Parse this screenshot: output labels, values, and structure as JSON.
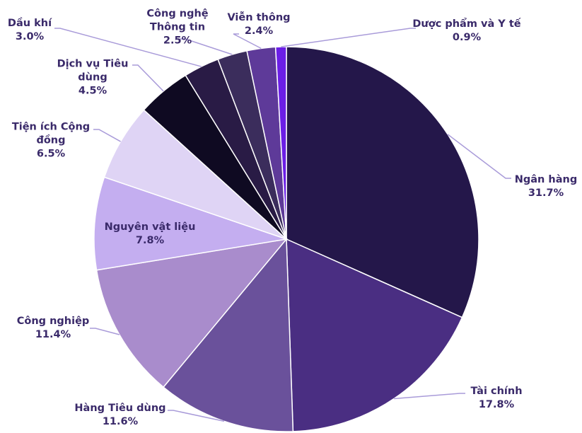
{
  "chart_data": {
    "type": "pie",
    "categories": [
      "Ngân hàng",
      "Tài chính",
      "Hàng Tiêu dùng",
      "Công nghiệp",
      "Nguyên vật liệu",
      "Tiện ích Cộng đồng",
      "Dịch vụ Tiêu dùng",
      "Dầu khí",
      "Công nghệ Thông tin",
      "Viễn thông",
      "Dược phẩm và Y tế"
    ],
    "values": [
      31.7,
      17.8,
      11.6,
      11.4,
      7.8,
      6.5,
      4.5,
      3.0,
      2.5,
      2.4,
      0.9
    ],
    "value_labels": [
      "31.7%",
      "17.8%",
      "11.6%",
      "11.4%",
      "7.8%",
      "6.5%",
      "4.5%",
      "3.0%",
      "2.5%",
      "2.4%",
      "0.9%"
    ],
    "colors": [
      "#24174a",
      "#4a2e82",
      "#6a519b",
      "#a98ccc",
      "#c4aef0",
      "#dfd4f5",
      "#0f0a22",
      "#291b45",
      "#3b2d5c",
      "#5e3a99",
      "#6b1ee6"
    ]
  }
}
